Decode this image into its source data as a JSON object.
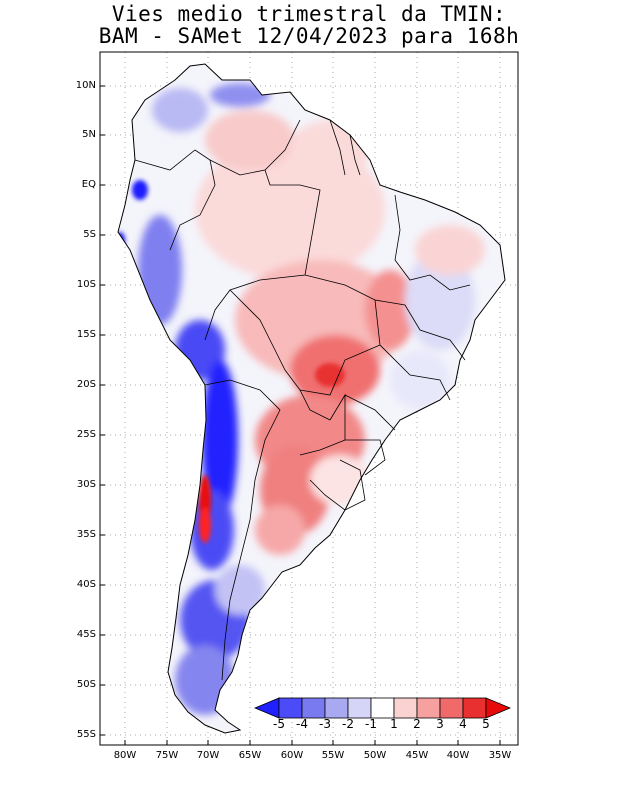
{
  "title": {
    "line1": "Vies medio trimestral da TMIN:",
    "line2": "BAM - SAMet 12/04/2023  para 168h"
  },
  "map": {
    "lat_labels": [
      "10N",
      "5N",
      "EQ",
      "5S",
      "10S",
      "15S",
      "20S",
      "25S",
      "30S",
      "35S",
      "40S",
      "45S",
      "50S",
      "55S"
    ],
    "lon_labels": [
      "80W",
      "75W",
      "70W",
      "65W",
      "60W",
      "55W",
      "50W",
      "45W",
      "40W",
      "35W"
    ],
    "grid": true
  },
  "colorbar": {
    "labels": [
      "-5",
      "-4",
      "-3",
      "-2",
      "-1",
      "1",
      "2",
      "3",
      "4",
      "5"
    ],
    "colors": [
      "#1f1fff",
      "#4b4bf7",
      "#7a7af0",
      "#a9a9f2",
      "#d5d5f8",
      "#ffffff",
      "#fbd2d2",
      "#f6a0a0",
      "#f06a6a",
      "#e83030",
      "#e80a0a"
    ]
  }
}
